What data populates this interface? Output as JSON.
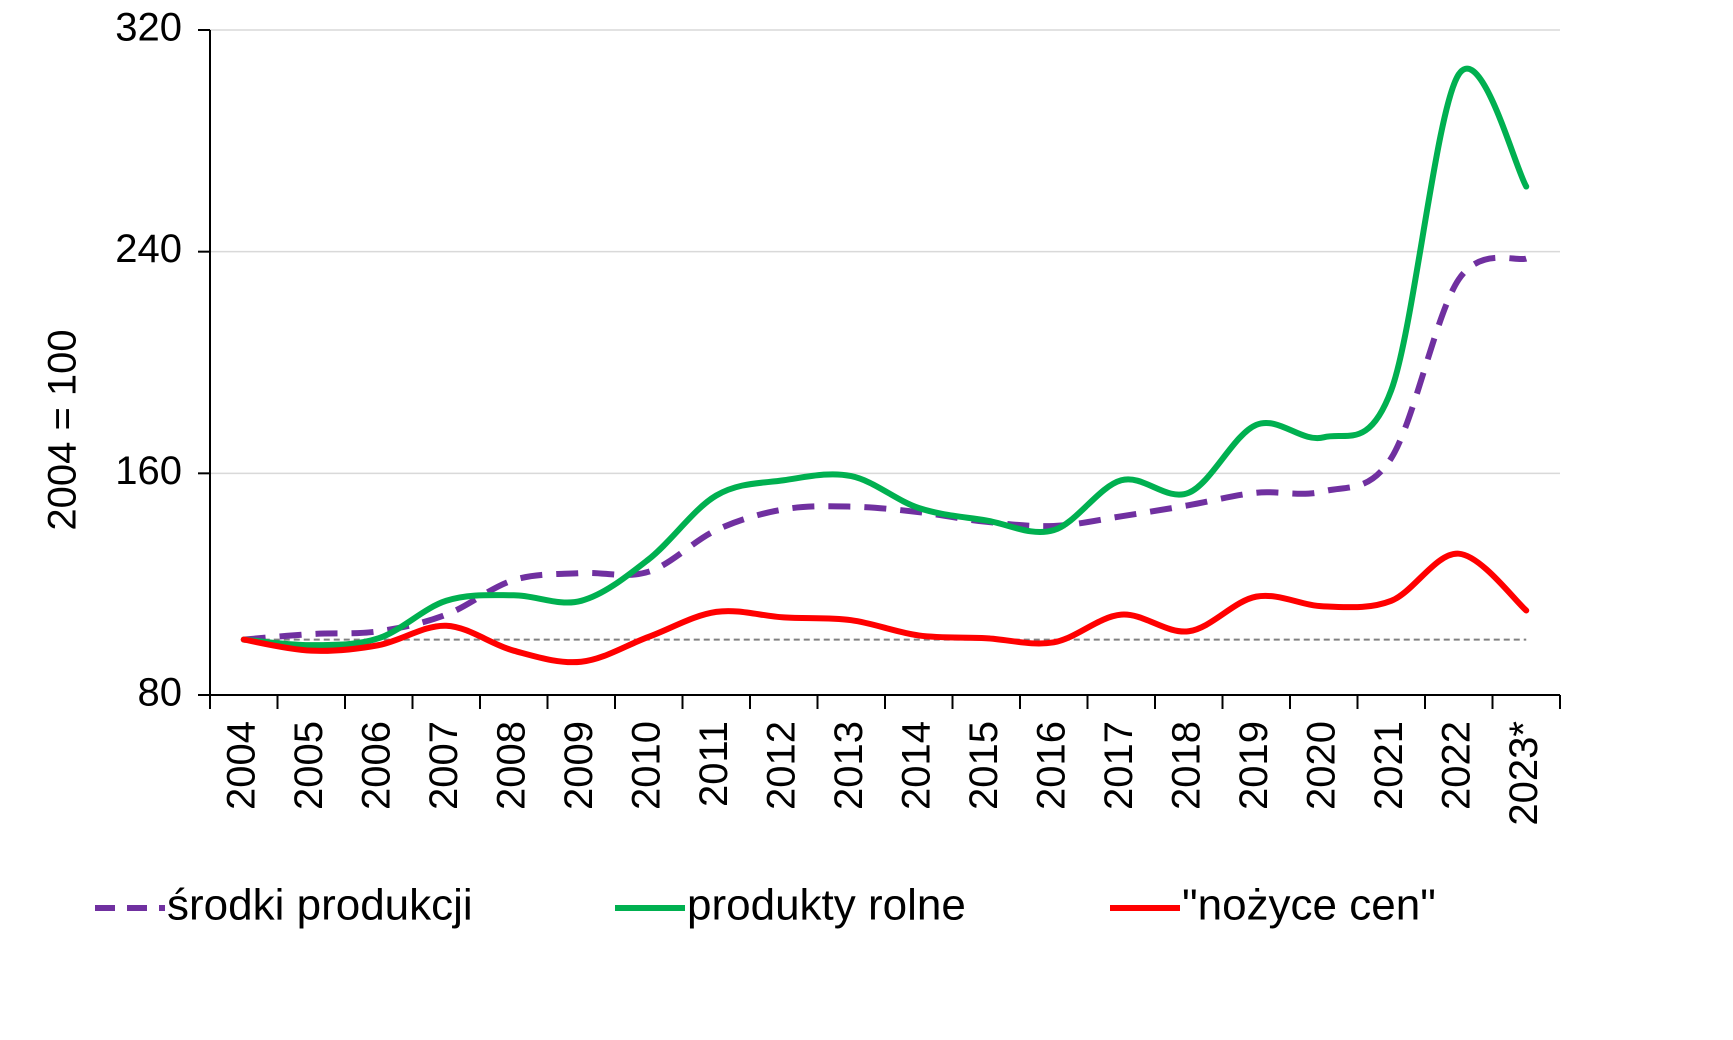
{
  "chart_data": {
    "type": "line",
    "y_label": "2004 = 100",
    "categories": [
      "2004",
      "2005",
      "2006",
      "2007",
      "2008",
      "2009",
      "2010",
      "2011",
      "2012",
      "2013",
      "2014",
      "2015",
      "2016",
      "2017",
      "2018",
      "2019",
      "2020",
      "2021",
      "2022",
      "2023*"
    ],
    "series": [
      {
        "name": "środki produkcji",
        "color": "#7030a0",
        "dashed": true,
        "values": [
          100,
          102,
          103,
          109,
          121.5,
          124,
          124.5,
          139.5,
          147,
          148,
          146,
          142.5,
          141,
          144.5,
          148.5,
          153,
          153.5,
          165.5,
          230,
          237.5
        ]
      },
      {
        "name": "produkty rolne",
        "color": "#00b050",
        "dashed": false,
        "values": [
          100,
          98,
          100.5,
          114,
          116,
          114,
          129,
          152,
          157.5,
          159,
          147.5,
          143,
          139.5,
          157.5,
          153,
          177.5,
          173,
          190,
          304,
          263.5
        ]
      },
      {
        "name": "\"nożyce cen\"",
        "color": "#ff0000",
        "dashed": false,
        "values": [
          100,
          96,
          98,
          105,
          96,
          92,
          101,
          110,
          108,
          107,
          101.5,
          100.5,
          99,
          109,
          103,
          115.5,
          112,
          114,
          131,
          110.5
        ]
      }
    ],
    "reference_line": 100,
    "ylim": [
      80,
      320
    ],
    "yticks": [
      80,
      160,
      240,
      320
    ],
    "grid": true,
    "legend": "bottom"
  }
}
